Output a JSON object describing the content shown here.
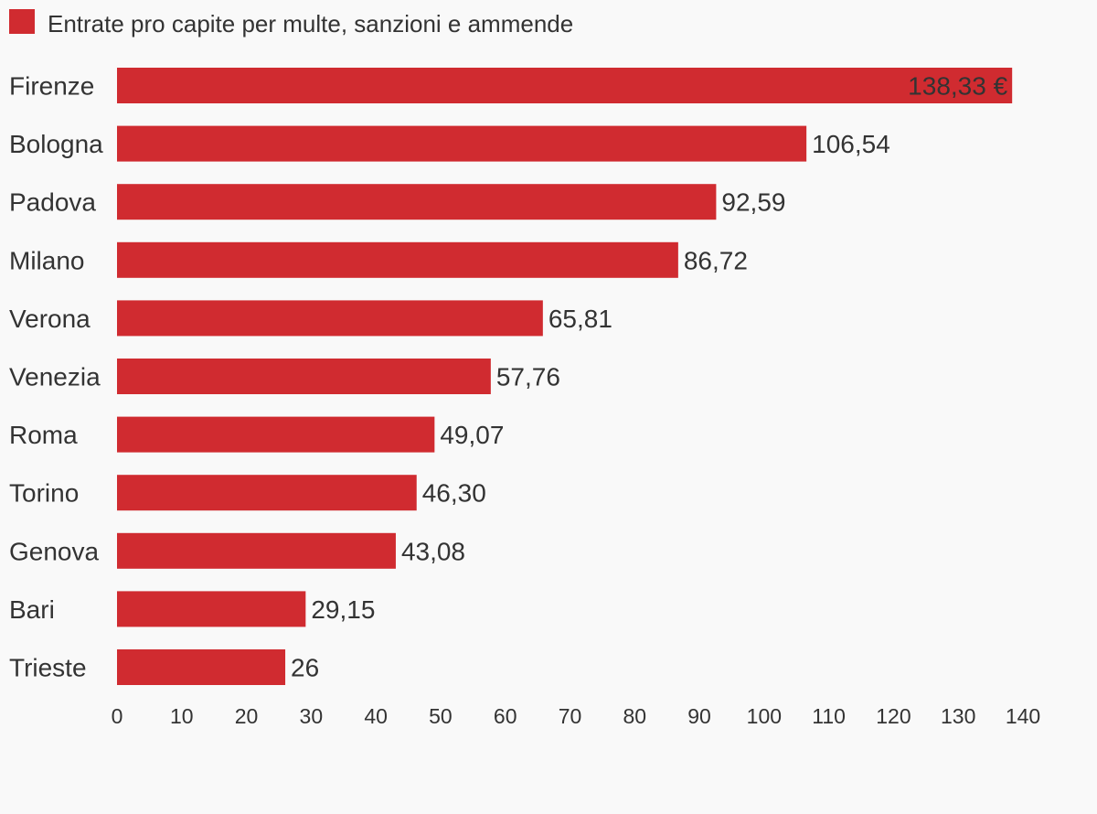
{
  "chart_data": {
    "type": "bar",
    "orientation": "horizontal",
    "legend": {
      "label": "Entrate pro capite per multe, sanzioni e ammende",
      "placement": "top-left"
    },
    "categories": [
      "Firenze",
      "Bologna",
      "Padova",
      "Milano",
      "Verona",
      "Venezia",
      "Roma",
      "Torino",
      "Genova",
      "Bari",
      "Trieste"
    ],
    "series": [
      {
        "name": "Entrate pro capite per multe, sanzioni e ammende",
        "values": [
          138.33,
          106.54,
          92.59,
          86.72,
          65.81,
          57.76,
          49.07,
          46.3,
          43.08,
          29.15,
          26
        ],
        "labels": [
          "138,33 €",
          "106,54",
          "92,59",
          "86,72",
          "65,81",
          "57,76",
          "49,07",
          "46,30",
          "43,08",
          "29,15",
          "26"
        ]
      }
    ],
    "xticks": [
      "0",
      "10",
      "20",
      "30",
      "40",
      "50",
      "60",
      "70",
      "80",
      "90",
      "100",
      "110",
      "120",
      "130",
      "140"
    ],
    "xlim": [
      0,
      140
    ],
    "grid": false,
    "colors": {
      "bar": "#d02b30",
      "text": "#333333",
      "background": "#f9f9f9"
    }
  }
}
